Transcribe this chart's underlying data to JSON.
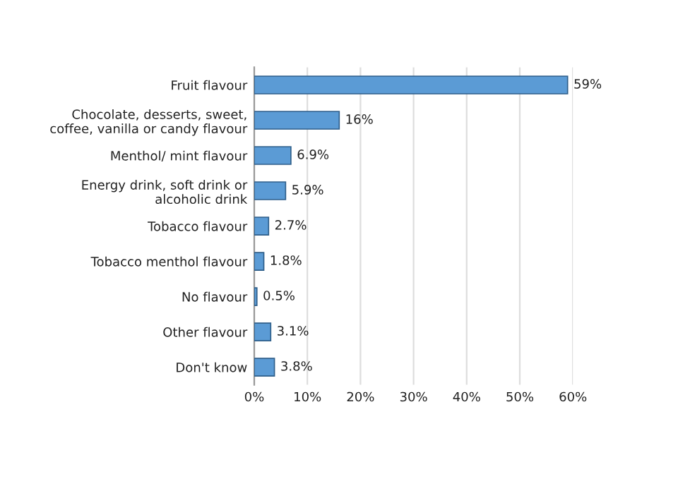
{
  "chart_data": {
    "type": "bar",
    "orientation": "horizontal",
    "categories": [
      "Fruit flavour",
      "Chocolate, desserts, sweet,\ncoffee, vanilla or candy flavour",
      "Menthol/ mint flavour",
      "Energy drink, soft drink or\nalcoholic drink",
      "Tobacco flavour",
      "Tobacco menthol flavour",
      "No flavour",
      "Other flavour",
      "Don't know"
    ],
    "values": [
      59,
      16,
      6.9,
      5.9,
      2.7,
      1.8,
      0.5,
      3.1,
      3.8
    ],
    "value_labels": [
      "59%",
      "16%",
      "6.9%",
      "5.9%",
      "2.7%",
      "1.8%",
      "0.5%",
      "3.1%",
      "3.8%"
    ],
    "color": "#5b9bd5",
    "xlim": [
      0,
      60
    ],
    "xticks": [
      {
        "value": 0,
        "label": "0%"
      },
      {
        "value": 10,
        "label": "10%"
      },
      {
        "value": 20,
        "label": "20%"
      },
      {
        "value": 30,
        "label": "30%"
      },
      {
        "value": 40,
        "label": "40%"
      },
      {
        "value": 50,
        "label": "50%"
      },
      {
        "value": 60,
        "label": "60%"
      }
    ],
    "grid": "x",
    "legend": false
  }
}
